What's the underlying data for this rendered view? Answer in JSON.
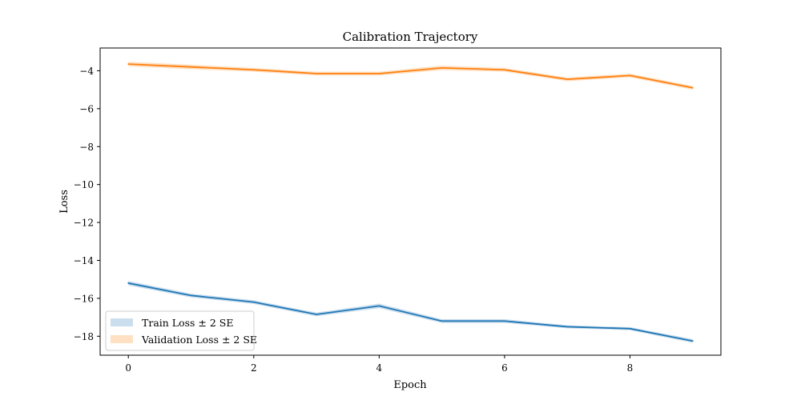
{
  "chart_data": {
    "type": "line",
    "title": "Calibration Trajectory",
    "xlabel": "Epoch",
    "ylabel": "Loss",
    "xlim": [
      -0.45,
      9.45
    ],
    "ylim": [
      -19.0,
      -2.8
    ],
    "xticks": [
      0,
      2,
      4,
      6,
      8
    ],
    "yticks": [
      -4,
      -6,
      -8,
      -10,
      -12,
      -14,
      -16,
      -18
    ],
    "xtick_labels": [
      "0",
      "2",
      "4",
      "6",
      "8"
    ],
    "ytick_labels": [
      "−4",
      "−6",
      "−8",
      "−10",
      "−12",
      "−14",
      "−16",
      "−18"
    ],
    "grid": false,
    "legend_position": "lower-left",
    "x": [
      0,
      1,
      2,
      3,
      4,
      5,
      6,
      7,
      8,
      9
    ],
    "series": [
      {
        "name": "Train Loss ± 2 SE",
        "line_color": "#1f77b4",
        "band_color": "#a9c8e2",
        "values": [
          -15.2,
          -15.85,
          -16.2,
          -16.85,
          -16.4,
          -17.2,
          -17.2,
          -17.5,
          -17.6,
          -18.25
        ],
        "se2": [
          0.12,
          0.1,
          0.1,
          0.1,
          0.12,
          0.1,
          0.1,
          0.08,
          0.08,
          0.1
        ]
      },
      {
        "name": "Validation Loss ± 2 SE",
        "line_color": "#ff7f0e",
        "band_color": "#ffcc99",
        "values": [
          -3.65,
          -3.8,
          -3.95,
          -4.15,
          -4.15,
          -3.85,
          -3.95,
          -4.45,
          -4.25,
          -4.9
        ],
        "se2": [
          0.12,
          0.12,
          0.1,
          0.1,
          0.1,
          0.12,
          0.1,
          0.1,
          0.1,
          0.1
        ]
      }
    ]
  }
}
